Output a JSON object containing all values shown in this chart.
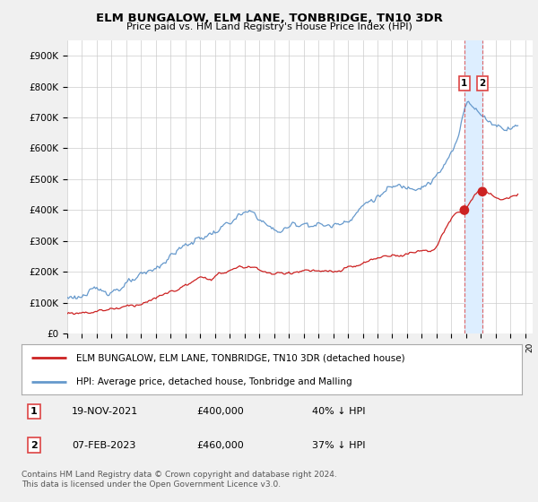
{
  "title": "ELM BUNGALOW, ELM LANE, TONBRIDGE, TN10 3DR",
  "subtitle": "Price paid vs. HM Land Registry's House Price Index (HPI)",
  "ylim": [
    0,
    950000
  ],
  "yticks": [
    0,
    100000,
    200000,
    300000,
    400000,
    500000,
    600000,
    700000,
    800000,
    900000
  ],
  "ytick_labels": [
    "£0",
    "£100K",
    "£200K",
    "£300K",
    "£400K",
    "£500K",
    "£600K",
    "£700K",
    "£800K",
    "£900K"
  ],
  "bg_color": "#f0f0f0",
  "plot_bg": "#ffffff",
  "hpi_color": "#6699cc",
  "price_color": "#cc2222",
  "vline_color": "#dd4444",
  "shade_color": "#ddeeff",
  "legend_label_red": "ELM BUNGALOW, ELM LANE, TONBRIDGE, TN10 3DR (detached house)",
  "legend_label_blue": "HPI: Average price, detached house, Tonbridge and Malling",
  "transaction1_date": "19-NOV-2021",
  "transaction1_price": 400000,
  "transaction1_hpi": "40% ↓ HPI",
  "transaction1_year": 2021.88,
  "transaction2_date": "07-FEB-2023",
  "transaction2_price": 460000,
  "transaction2_hpi": "37% ↓ HPI",
  "transaction2_year": 2023.1,
  "footer": "Contains HM Land Registry data © Crown copyright and database right 2024.\nThis data is licensed under the Open Government Licence v3.0.",
  "xmin": 1995,
  "xmax": 2026.5
}
